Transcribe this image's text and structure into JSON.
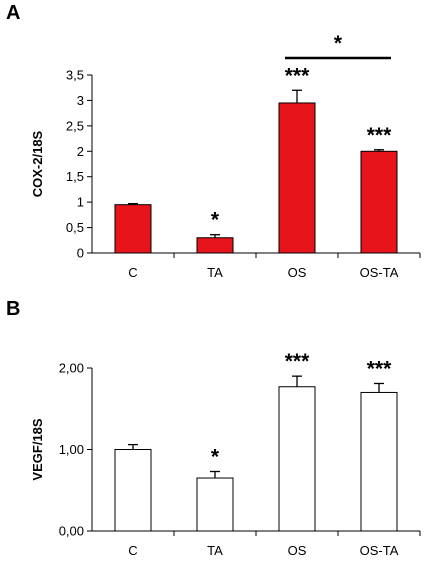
{
  "chart_data": [
    {
      "panel": "A",
      "type": "bar",
      "ylabel": "COX-2/18S",
      "categories": [
        "C",
        "TA",
        "OS",
        "OS-TA"
      ],
      "values": [
        0.95,
        0.3,
        2.95,
        2.0
      ],
      "errors": [
        0.02,
        0.06,
        0.25,
        0.03
      ],
      "significance": [
        "",
        "*",
        "***",
        "***"
      ],
      "bracket": {
        "from": "OS",
        "to": "OS-TA",
        "label": "*"
      },
      "ylim": [
        0,
        3.5
      ],
      "yticks": [
        0,
        0.5,
        1,
        1.5,
        2,
        2.5,
        3,
        3.5
      ],
      "ytick_labels": [
        "0",
        "0,5",
        "1",
        "1,5",
        "2",
        "2,5",
        "3",
        "3,5"
      ],
      "bar_fill": "#e8141b",
      "bar_stroke": "#000000"
    },
    {
      "panel": "B",
      "type": "bar",
      "ylabel": "VEGF/18S",
      "categories": [
        "C",
        "TA",
        "OS",
        "OS-TA"
      ],
      "values": [
        1.0,
        0.65,
        1.77,
        1.7
      ],
      "errors": [
        0.06,
        0.08,
        0.13,
        0.11
      ],
      "significance": [
        "",
        "*",
        "***",
        "***"
      ],
      "ylim": [
        0,
        2
      ],
      "yticks": [
        0,
        1,
        2
      ],
      "ytick_labels": [
        "0,00",
        "1,00",
        "2,00"
      ],
      "bar_fill": "#ffffff",
      "bar_stroke": "#000000"
    }
  ]
}
